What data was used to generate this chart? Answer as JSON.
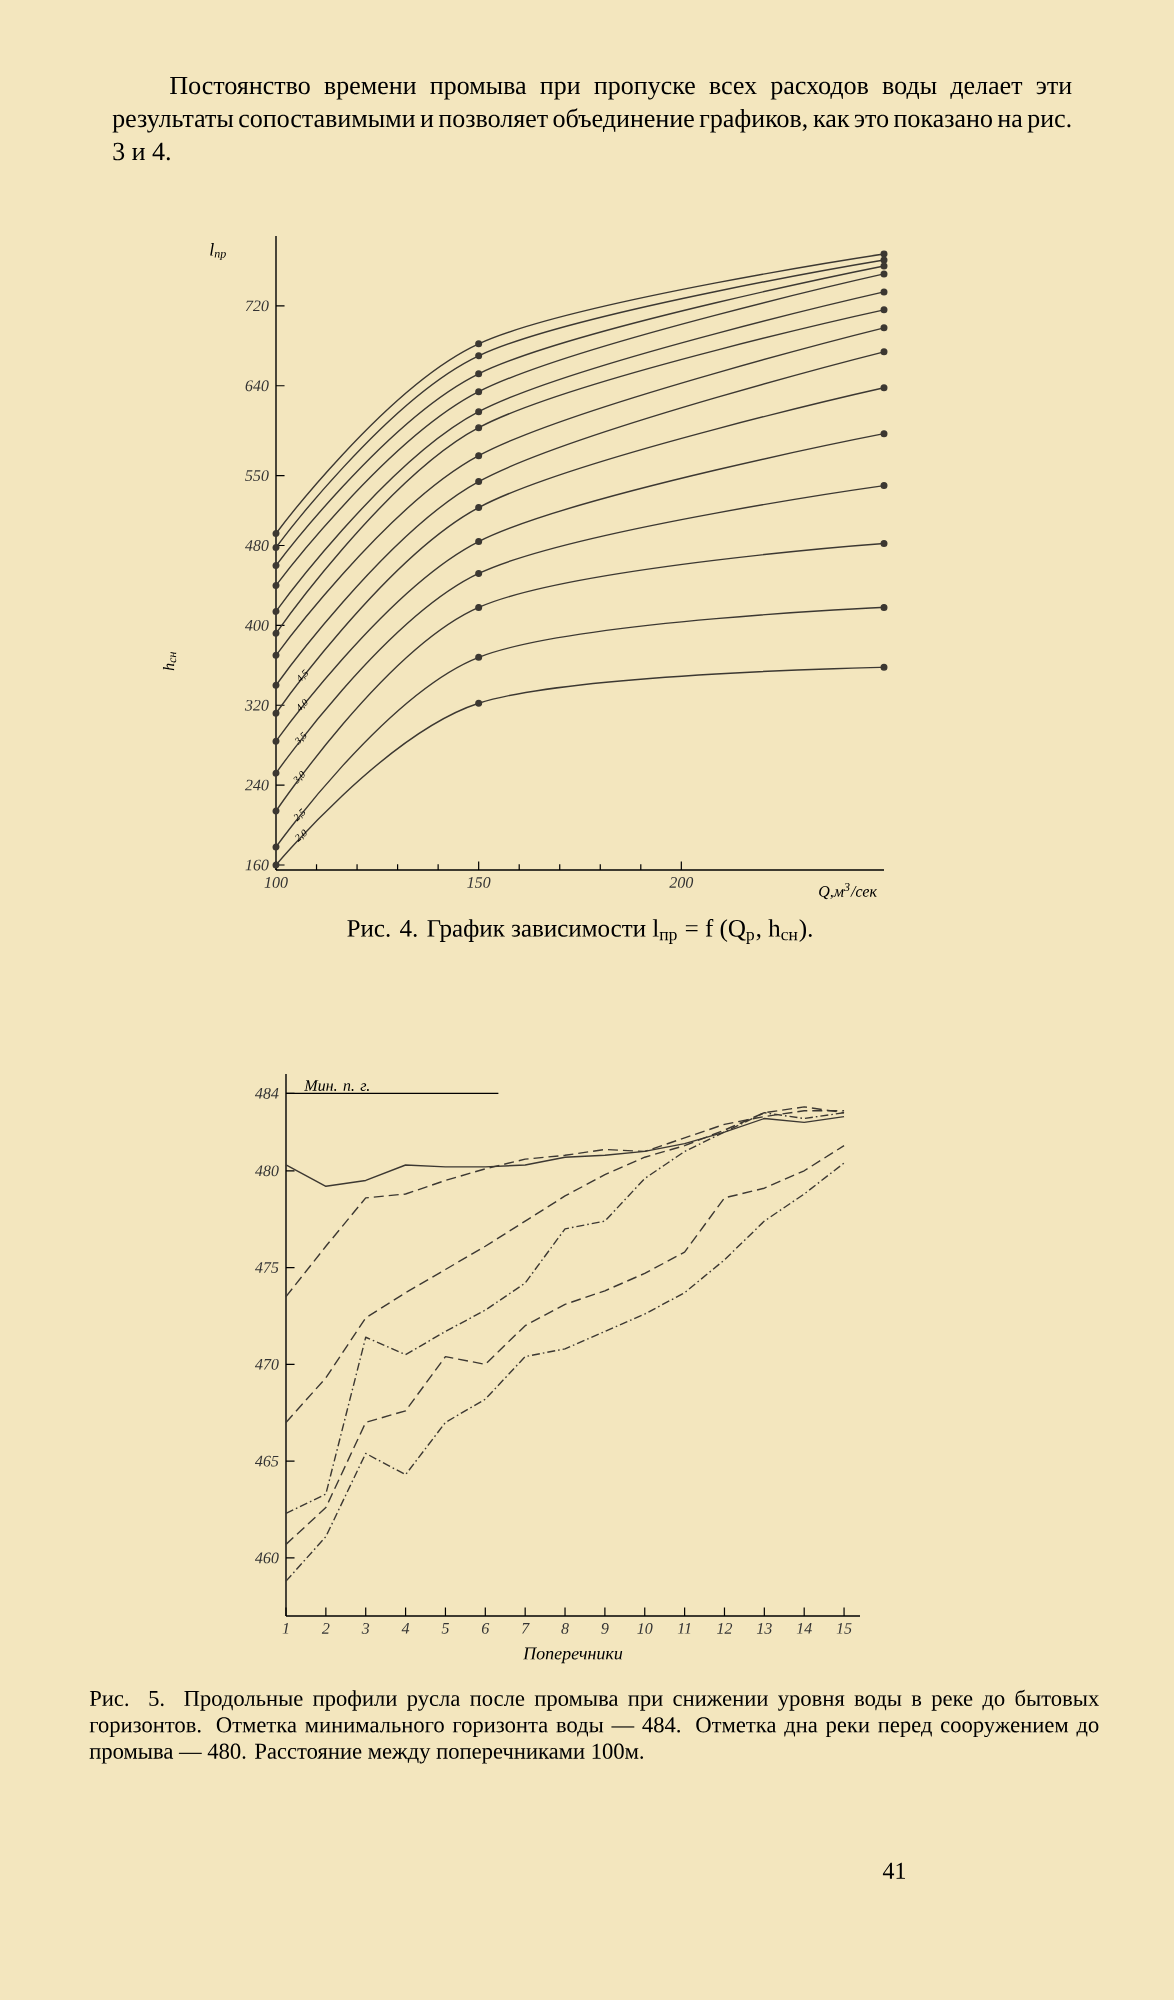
{
  "chart_data": [
    {
      "type": "line",
      "title": "Рис. 4. График зависимости l$_{пр}$ = f (Q$_{р}$, h$_{сн}$).",
      "xlabel": "Q,м$^{3}$/сек",
      "ylabel": "l$_{пр}$",
      "annotations": [
        "Постоянство времени промыва при пропуске всех расходов воды делает эти результаты сопоставимыми и позволяет объединение графиков, как это показано на рис. 3 и 4.",
        "h$_{сн}$"
      ],
      "x": [
        100,
        150,
        250
      ],
      "xlim": [
        100,
        250
      ],
      "xticks": [
        100,
        150,
        200
      ],
      "ylim": [
        155,
        790
      ],
      "yticks": [
        160,
        240,
        320,
        400,
        480,
        550,
        640,
        720
      ],
      "marker": "circle",
      "series": [
        {
          "color": "#3c3832",
          "values": [
            492,
            682,
            772
          ]
        },
        {
          "color": "#3c3832",
          "values": [
            478,
            670,
            766
          ]
        },
        {
          "color": "#3c3832",
          "values": [
            460,
            652,
            760
          ]
        },
        {
          "color": "#3c3832",
          "values": [
            440,
            634,
            752
          ]
        },
        {
          "color": "#3c3832",
          "values": [
            414,
            614,
            734
          ]
        },
        {
          "color": "#3c3832",
          "values": [
            392,
            598,
            716
          ]
        },
        {
          "color": "#3c3832",
          "values": [
            370,
            570,
            698
          ]
        },
        {
          "color": "#3c3832",
          "values": [
            340,
            544,
            674
          ]
        },
        {
          "name": "4,5",
          "color": "#3c3832",
          "values": [
            312,
            518,
            638
          ]
        },
        {
          "name": "4,0",
          "color": "#3c3832",
          "values": [
            284,
            484,
            592
          ]
        },
        {
          "name": "3,5",
          "color": "#3c3832",
          "values": [
            252,
            452,
            540
          ]
        },
        {
          "name": "3,0",
          "color": "#3c3832",
          "values": [
            214,
            418,
            482
          ]
        },
        {
          "name": "2,5",
          "color": "#3c3832",
          "values": [
            178,
            368,
            418
          ]
        },
        {
          "name": "2,0",
          "color": "#3c3832",
          "values": [
            160,
            322,
            358
          ]
        }
      ]
    },
    {
      "type": "line",
      "title": "Рис. 5. Продольные профили русла после промыва при снижении уровня воды в реке до бытовых горизонтов. Отметка минимального горизонта воды — 484. Отметка дна реки перед сооружением до промыва — 480. Расстояние между поперечниками 100м.",
      "xlabel": "Поперечники",
      "annotations": [
        "41"
      ],
      "x": [
        1,
        2,
        3,
        4,
        5,
        6,
        7,
        8,
        9,
        10,
        11,
        12,
        13,
        14,
        15
      ],
      "xlim": [
        1,
        15.4
      ],
      "xticks": [
        1,
        2,
        3,
        4,
        5,
        6,
        7,
        8,
        9,
        10,
        11,
        12,
        13,
        14,
        15
      ],
      "ylim": [
        457,
        485
      ],
      "yticks": [
        460,
        465,
        470,
        475,
        480,
        484
      ],
      "ref_lines": [
        {
          "axis": "y",
          "value": 484,
          "label": "Мин. п. г."
        }
      ],
      "series": [
        {
          "color": "#3c3832",
          "line_style": "solid",
          "values": [
            480.3,
            479.2,
            479.5,
            480.3,
            480.2,
            480.2,
            480.3,
            480.7,
            480.8,
            481.0,
            481.4,
            482.0,
            482.7,
            482.5,
            482.8
          ]
        },
        {
          "color": "#3c3832",
          "line_style": "dashed",
          "values": [
            473.5,
            476.1,
            478.6,
            478.8,
            479.5,
            480.1,
            480.6,
            480.8,
            481.1,
            481.0,
            481.7,
            482.4,
            482.8,
            483.1,
            483.1
          ]
        },
        {
          "color": "#3c3832",
          "line_style": "dashed",
          "values": [
            467.0,
            469.3,
            472.4,
            473.7,
            474.9,
            476.1,
            477.4,
            478.7,
            479.8,
            480.7,
            481.3,
            482.1,
            483.0,
            483.3,
            483.0
          ]
        },
        {
          "color": "#3c3832",
          "line_style": "dotted",
          "values": [
            462.3,
            463.3,
            471.4,
            470.5,
            471.7,
            472.8,
            474.2,
            477.0,
            477.4,
            479.6,
            481.0,
            482.0,
            483.0,
            482.7,
            483.0
          ]
        },
        {
          "color": "#3c3832",
          "line_style": "dashed",
          "values": [
            460.7,
            462.6,
            467.0,
            467.6,
            470.4,
            470.0,
            472.0,
            473.1,
            473.8,
            474.7,
            475.8,
            478.6,
            479.1,
            480.0,
            481.3
          ]
        },
        {
          "color": "#3c3832",
          "line_style": "dotted",
          "values": [
            458.8,
            461.1,
            465.4,
            464.3,
            467.0,
            468.2,
            470.4,
            470.8,
            471.7,
            472.6,
            473.7,
            475.4,
            477.4,
            478.8,
            480.4
          ]
        }
      ]
    }
  ]
}
